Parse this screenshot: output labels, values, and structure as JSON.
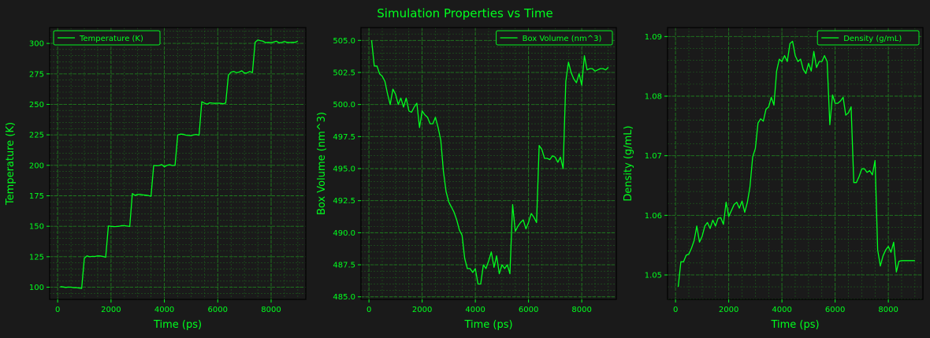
{
  "figure": {
    "title": "Simulation Properties vs Time",
    "background": "#1a1a1a",
    "accent": "#00ff1e",
    "grid_color": "#1f7a1f"
  },
  "chart_data": [
    {
      "type": "line",
      "title": "",
      "xlabel": "Time (ps)",
      "ylabel": "Temperature (K)",
      "legend": "top-left",
      "grid": true,
      "xlim": [
        -300,
        9300
      ],
      "ylim": [
        90,
        313
      ],
      "xticks": [
        0,
        2000,
        4000,
        6000,
        8000
      ],
      "yticks": [
        100,
        125,
        150,
        175,
        200,
        225,
        250,
        275,
        300
      ],
      "ytick_labels": [
        "100",
        "125",
        "150",
        "175",
        "200",
        "225",
        "250",
        "275",
        "300"
      ],
      "series": [
        {
          "name": "Temperature (K)",
          "x": [
            100,
            200,
            300,
            400,
            500,
            600,
            700,
            800,
            900,
            1000,
            1100,
            1200,
            1300,
            1400,
            1500,
            1600,
            1700,
            1800,
            1900,
            2000,
            2100,
            2200,
            2300,
            2400,
            2500,
            2600,
            2700,
            2800,
            2900,
            3000,
            3100,
            3200,
            3300,
            3400,
            3500,
            3600,
            3700,
            3800,
            3900,
            4000,
            4100,
            4200,
            4300,
            4400,
            4500,
            4600,
            4700,
            4800,
            4900,
            5000,
            5100,
            5200,
            5300,
            5400,
            5500,
            5600,
            5700,
            5800,
            5900,
            6000,
            6100,
            6200,
            6300,
            6400,
            6500,
            6600,
            6700,
            6800,
            6900,
            7000,
            7100,
            7200,
            7300,
            7400,
            7500,
            7600,
            7700,
            7800,
            7900,
            8000,
            8100,
            8200,
            8300,
            8400,
            8500,
            8600,
            8700,
            8800,
            8900,
            9000
          ],
          "y": [
            100.5,
            100.2,
            99.8,
            100.1,
            100.0,
            99.6,
            99.7,
            99.3,
            99.0,
            123.8,
            125.7,
            125.0,
            125.3,
            125.2,
            125.7,
            125.6,
            125.2,
            124.6,
            150.2,
            150.0,
            149.7,
            149.8,
            150.0,
            150.5,
            150.5,
            150.2,
            149.8,
            176.8,
            175.3,
            176.2,
            176.2,
            175.7,
            175.5,
            175.2,
            174.6,
            199.9,
            199.6,
            199.8,
            200.6,
            198.8,
            200.0,
            200.5,
            199.8,
            200.0,
            224.9,
            225.6,
            225.5,
            224.8,
            224.5,
            224.3,
            225.0,
            225.3,
            224.7,
            252.2,
            251.0,
            250.2,
            251.3,
            251.0,
            250.8,
            251.0,
            250.8,
            250.5,
            251.1,
            274.0,
            276.5,
            277.0,
            276.0,
            276.5,
            277.5,
            275.7,
            275.8,
            277.0,
            276.0,
            301.0,
            302.8,
            302.3,
            301.8,
            300.6,
            301.0,
            300.5,
            301.2,
            301.8,
            300.5,
            300.8,
            301.5,
            300.9,
            300.8,
            301.0,
            300.9,
            301.9
          ]
        }
      ]
    },
    {
      "type": "line",
      "title": "",
      "xlabel": "Time (ps)",
      "ylabel": "Box Volume (nm^3)",
      "legend": "top-right",
      "grid": true,
      "xlim": [
        -300,
        9300
      ],
      "ylim": [
        484.8,
        506.0
      ],
      "xticks": [
        0,
        2000,
        4000,
        6000,
        8000
      ],
      "yticks": [
        485.0,
        487.5,
        490.0,
        492.5,
        495.0,
        497.5,
        500.0,
        502.5,
        505.0
      ],
      "ytick_labels": [
        "485.0",
        "487.5",
        "490.0",
        "492.5",
        "495.0",
        "497.5",
        "500.0",
        "502.5",
        "505.0"
      ],
      "series": [
        {
          "name": "Box Volume (nm^3)",
          "x": [
            100,
            200,
            300,
            400,
            500,
            600,
            700,
            800,
            900,
            1000,
            1100,
            1200,
            1300,
            1400,
            1500,
            1600,
            1700,
            1800,
            1900,
            2000,
            2100,
            2200,
            2300,
            2400,
            2500,
            2600,
            2700,
            2800,
            2900,
            3000,
            3100,
            3200,
            3300,
            3400,
            3500,
            3600,
            3700,
            3800,
            3900,
            4000,
            4100,
            4200,
            4300,
            4400,
            4500,
            4600,
            4700,
            4800,
            4900,
            5000,
            5100,
            5200,
            5300,
            5400,
            5500,
            5600,
            5700,
            5800,
            5900,
            6000,
            6100,
            6200,
            6300,
            6400,
            6500,
            6600,
            6700,
            6800,
            6900,
            7000,
            7100,
            7200,
            7300,
            7400,
            7500,
            7600,
            7700,
            7800,
            7900,
            8000,
            8100,
            8200,
            8300,
            8400,
            8500,
            8600,
            8700,
            8800,
            8900,
            9000
          ],
          "y": [
            505.0,
            503.0,
            503.0,
            502.4,
            502.2,
            501.8,
            500.8,
            500.0,
            501.2,
            500.8,
            500.0,
            500.5,
            499.8,
            500.5,
            499.5,
            499.4,
            499.8,
            500.1,
            498.2,
            499.5,
            499.2,
            499.0,
            498.5,
            498.5,
            499.0,
            498.2,
            497.2,
            494.8,
            493.2,
            492.4,
            492.0,
            491.6,
            491.0,
            490.2,
            489.8,
            488.0,
            487.2,
            487.2,
            486.9,
            487.2,
            486.0,
            486.0,
            487.5,
            487.2,
            487.8,
            488.5,
            487.3,
            488.2,
            486.8,
            487.5,
            487.2,
            487.5,
            486.8,
            492.2,
            490.1,
            490.5,
            490.8,
            491.0,
            490.3,
            490.8,
            491.5,
            491.2,
            490.8,
            496.8,
            496.5,
            495.8,
            495.8,
            495.7,
            496.0,
            495.9,
            495.5,
            495.9,
            495.0,
            501.8,
            503.3,
            502.5,
            502.0,
            501.7,
            502.4,
            501.5,
            503.8,
            502.7,
            502.8,
            502.8,
            502.6,
            502.7,
            502.8,
            502.8,
            502.7,
            502.9
          ]
        }
      ]
    },
    {
      "type": "line",
      "title": "",
      "xlabel": "Time (ps)",
      "ylabel": "Density (g/mL)",
      "legend": "top-right",
      "grid": true,
      "xlim": [
        -300,
        9300
      ],
      "ylim": [
        1.0459,
        1.0915
      ],
      "xticks": [
        0,
        2000,
        4000,
        6000,
        8000
      ],
      "yticks": [
        1.05,
        1.06,
        1.07,
        1.08,
        1.09
      ],
      "ytick_labels": [
        "1.05",
        "1.06",
        "1.07",
        "1.08",
        "1.09"
      ],
      "series": [
        {
          "name": "Density (g/mL)",
          "x": [
            100,
            200,
            300,
            400,
            500,
            600,
            700,
            800,
            900,
            1000,
            1100,
            1200,
            1300,
            1400,
            1500,
            1600,
            1700,
            1800,
            1900,
            2000,
            2100,
            2200,
            2300,
            2400,
            2500,
            2600,
            2700,
            2800,
            2900,
            3000,
            3100,
            3200,
            3300,
            3400,
            3500,
            3600,
            3700,
            3800,
            3900,
            4000,
            4100,
            4200,
            4300,
            4400,
            4500,
            4600,
            4700,
            4800,
            4900,
            5000,
            5100,
            5200,
            5300,
            5400,
            5500,
            5600,
            5700,
            5800,
            5900,
            6000,
            6100,
            6200,
            6300,
            6400,
            6500,
            6600,
            6700,
            6800,
            6900,
            7000,
            7100,
            7200,
            7300,
            7400,
            7500,
            7600,
            7700,
            7800,
            7900,
            8000,
            8100,
            8200,
            8300,
            8400,
            8500,
            8600,
            8700,
            8800,
            8900,
            9000
          ],
          "y": [
            1.048,
            1.0522,
            1.0522,
            1.0533,
            1.0535,
            1.0545,
            1.0558,
            1.0582,
            1.0555,
            1.0565,
            1.0582,
            1.0588,
            1.0578,
            1.0592,
            1.0582,
            1.0595,
            1.0596,
            1.0585,
            1.0622,
            1.0598,
            1.0608,
            1.0618,
            1.0622,
            1.0612,
            1.0624,
            1.0605,
            1.0622,
            1.0648,
            1.0698,
            1.0712,
            1.0755,
            1.0762,
            1.0758,
            1.0778,
            1.0782,
            1.0798,
            1.0785,
            1.0842,
            1.0862,
            1.0858,
            1.0868,
            1.0858,
            1.0888,
            1.0892,
            1.0868,
            1.0858,
            1.0862,
            1.0845,
            1.0838,
            1.0855,
            1.0842,
            1.0875,
            1.0848,
            1.0858,
            1.0858,
            1.0868,
            1.0858,
            1.0752,
            1.0802,
            1.0788,
            1.0788,
            1.0792,
            1.0798,
            1.0768,
            1.0772,
            1.0782,
            1.0655,
            1.0655,
            1.0665,
            1.0678,
            1.0678,
            1.0672,
            1.0675,
            1.0668,
            1.0692,
            1.0542,
            1.0515,
            1.0532,
            1.0542,
            1.0548,
            1.0538,
            1.0555,
            1.0505,
            1.0523,
            1.0524,
            1.0524,
            1.0524,
            1.0524,
            1.0524,
            1.0524
          ]
        }
      ]
    }
  ]
}
